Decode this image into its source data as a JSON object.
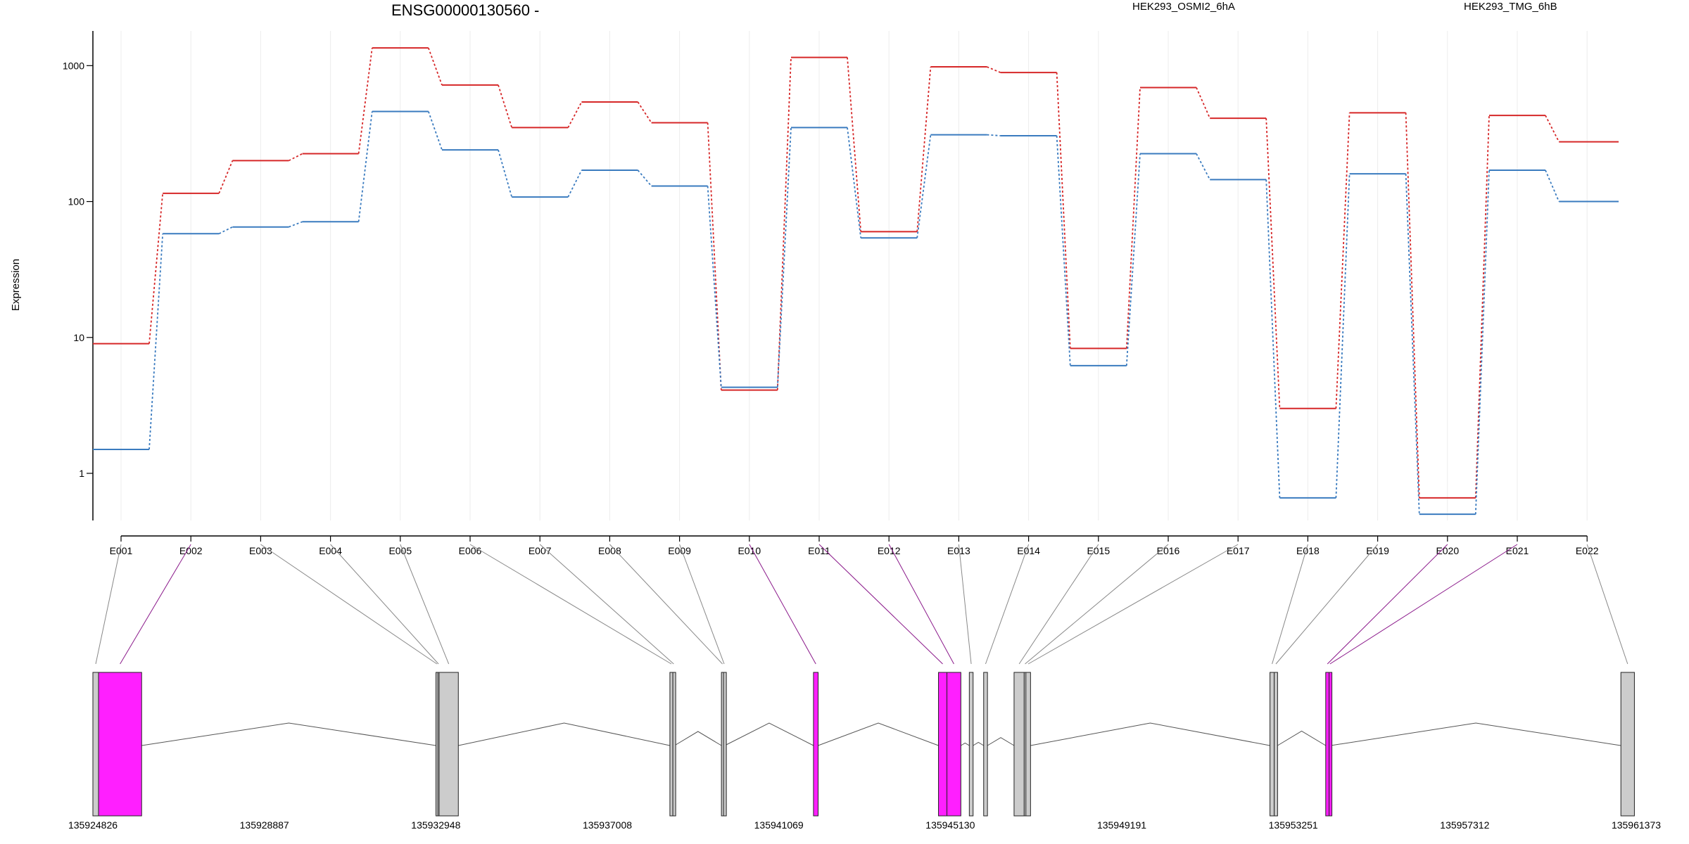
{
  "chart_data": {
    "type": "line",
    "title": "ENSG00000130560 -",
    "ylabel": "Expression",
    "yscale": "log",
    "ylim": [
      0.45,
      1800
    ],
    "yticks": [
      1,
      10,
      100,
      1000
    ],
    "grid": "vertical",
    "legend_placement": "top-right",
    "categories": [
      "E001",
      "E002",
      "E003",
      "E004",
      "E005",
      "E006",
      "E007",
      "E008",
      "E009",
      "E010",
      "E011",
      "E012",
      "E013",
      "E014",
      "E015",
      "E016",
      "E017",
      "E018",
      "E019",
      "E020",
      "E021",
      "E022"
    ],
    "series": [
      {
        "name": "HEK293_OSMI2_6hA",
        "color": "#d62728",
        "values": [
          9,
          115,
          200,
          225,
          1350,
          720,
          350,
          540,
          380,
          4.1,
          1150,
          60,
          980,
          890,
          8.3,
          690,
          410,
          3.0,
          450,
          0.66,
          430,
          275
        ]
      },
      {
        "name": "HEK293_TMG_6hB",
        "color": "#3a7bbf",
        "values": [
          1.5,
          58,
          65,
          71,
          460,
          240,
          108,
          170,
          130,
          4.3,
          350,
          54,
          310,
          305,
          6.2,
          225,
          145,
          0.66,
          160,
          0.5,
          170,
          100
        ]
      }
    ],
    "gene_model": {
      "genomic_range": [
        135924826,
        135961373
      ],
      "coordinate_labels": [
        "135924826",
        "135928887",
        "135932948",
        "135937008",
        "135941069",
        "135945130",
        "135949191",
        "135953251",
        "135957312",
        "135961373"
      ],
      "colors": {
        "exon": "#cccccc",
        "highlighted_exon": "#ff1fff",
        "connector": "#888888",
        "highlighted_connector": "#8b1a8b"
      },
      "exons": [
        {
          "bin": "E001",
          "start": 135924826,
          "end": 135924960,
          "highlight": false
        },
        {
          "bin": "E002",
          "start": 135924960,
          "end": 135925980,
          "highlight": true
        },
        {
          "bin": "E003",
          "start": 135932950,
          "end": 135932995,
          "highlight": false
        },
        {
          "bin": "E004",
          "start": 135932995,
          "end": 135933025,
          "highlight": false
        },
        {
          "bin": "E005",
          "start": 135933025,
          "end": 135933480,
          "highlight": false
        },
        {
          "bin": "E006",
          "start": 135938490,
          "end": 135938560,
          "highlight": false
        },
        {
          "bin": "E007",
          "start": 135938560,
          "end": 135938600,
          "highlight": false
        },
        {
          "bin": "E008",
          "start": 135939710,
          "end": 135939760,
          "highlight": false
        },
        {
          "bin": "E009",
          "start": 135939760,
          "end": 135939790,
          "highlight": false
        },
        {
          "bin": "E010",
          "start": 135941890,
          "end": 135942000,
          "highlight": true
        },
        {
          "bin": "E011",
          "start": 135944850,
          "end": 135945050,
          "highlight": true
        },
        {
          "bin": "E012",
          "start": 135945050,
          "end": 135945380,
          "highlight": true
        },
        {
          "bin": "E013",
          "start": 135945580,
          "end": 135945670,
          "highlight": false
        },
        {
          "bin": "E014",
          "start": 135945920,
          "end": 135946010,
          "highlight": false
        },
        {
          "bin": "E015",
          "start": 135946640,
          "end": 135946880,
          "highlight": false
        },
        {
          "bin": "E016",
          "start": 135946880,
          "end": 135946920,
          "highlight": false
        },
        {
          "bin": "E017",
          "start": 135946920,
          "end": 135947030,
          "highlight": false
        },
        {
          "bin": "E018",
          "start": 135952700,
          "end": 135952800,
          "highlight": false
        },
        {
          "bin": "E019",
          "start": 135952800,
          "end": 135952880,
          "highlight": false
        },
        {
          "bin": "E020",
          "start": 135954020,
          "end": 135954100,
          "highlight": true
        },
        {
          "bin": "E021",
          "start": 135954100,
          "end": 135954140,
          "highlight": true
        },
        {
          "bin": "E022",
          "start": 135961010,
          "end": 135961330,
          "highlight": false
        }
      ]
    }
  }
}
